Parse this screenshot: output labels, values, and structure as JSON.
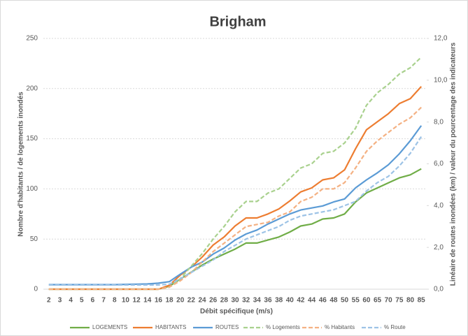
{
  "chart_data": {
    "type": "line",
    "title": "Brigham",
    "x_label": "Débit spécifique (m/s)",
    "y_label": "Nombre d'habitants / de logements inondés",
    "y2_label": "Linéaire de routes inondées (km) / valeur du pourcentage des indicateurs",
    "categories": [
      2,
      3,
      4,
      5,
      6,
      7,
      8,
      10,
      12,
      14,
      16,
      18,
      20,
      22,
      24,
      26,
      28,
      30,
      32,
      34,
      36,
      38,
      40,
      42,
      44,
      46,
      48,
      50,
      55,
      60,
      65,
      70,
      75,
      80,
      85
    ],
    "ylim": [
      0,
      250
    ],
    "yticks": [
      0,
      50,
      100,
      150,
      200,
      250
    ],
    "y2lim": [
      0,
      12
    ],
    "y2ticks": [
      {
        "value": 0,
        "label": "0,0"
      },
      {
        "value": 2,
        "label": "2,0"
      },
      {
        "value": 4,
        "label": "4,0"
      },
      {
        "value": 6,
        "label": "6,0"
      },
      {
        "value": 8,
        "label": "8,0"
      },
      {
        "value": 10,
        "label": "10,0"
      },
      {
        "value": 12,
        "label": "12,0"
      }
    ],
    "grid": true,
    "legend": "bottom",
    "series": [
      {
        "name": "LOGEMENTS",
        "color": "#70ad47",
        "dashed": false,
        "values": [
          0,
          0,
          0,
          0,
          0,
          0,
          0,
          0,
          0,
          0,
          0,
          3,
          10,
          17,
          24,
          30,
          35,
          40,
          46,
          46,
          49,
          52,
          57,
          63,
          65,
          70,
          71,
          75,
          87,
          96,
          101,
          106,
          111,
          114,
          120
        ]
      },
      {
        "name": "HABITANTS",
        "color": "#ed7d31",
        "dashed": false,
        "values": [
          0,
          0,
          0,
          0,
          0,
          0,
          0,
          0,
          0,
          0,
          0,
          4,
          14,
          22,
          32,
          44,
          52,
          63,
          71,
          71,
          75,
          80,
          88,
          97,
          101,
          109,
          111,
          119,
          140,
          159,
          167,
          175,
          185,
          190,
          202
        ]
      },
      {
        "name": "ROUTES",
        "color": "#5b9bd5",
        "dashed": false,
        "values": [
          4.5,
          4.5,
          4.5,
          4.5,
          4.5,
          4.5,
          4.5,
          4.8,
          5,
          5.2,
          6,
          7.5,
          15,
          22,
          27,
          35,
          41,
          49,
          55,
          59,
          65,
          70,
          75,
          79,
          81,
          83,
          87,
          90,
          101,
          109,
          116,
          124,
          135,
          148,
          163
        ]
      },
      {
        "name": "% Logements",
        "color": "#a9d18e",
        "dashed": true,
        "axis": "y2",
        "values": [
          0,
          0,
          0,
          0,
          0,
          0,
          0,
          0,
          0,
          0,
          0,
          0.1,
          0.5,
          1.1,
          1.7,
          2.4,
          3.0,
          3.7,
          4.2,
          4.2,
          4.6,
          4.8,
          5.3,
          5.8,
          6.0,
          6.5,
          6.6,
          7.0,
          7.7,
          8.8,
          9.4,
          9.8,
          10.3,
          10.6,
          11.1
        ]
      },
      {
        "name": "% Habitants",
        "color": "#f4b183",
        "dashed": true,
        "axis": "y2",
        "values": [
          0,
          0,
          0,
          0,
          0,
          0,
          0,
          0,
          0,
          0,
          0,
          0.1,
          0.4,
          0.8,
          1.3,
          1.8,
          2.2,
          2.6,
          3.0,
          3.1,
          3.2,
          3.5,
          3.7,
          4.2,
          4.4,
          4.8,
          4.8,
          5.1,
          5.8,
          6.6,
          7.1,
          7.5,
          7.9,
          8.2,
          8.7
        ]
      },
      {
        "name": "% Route",
        "color": "#9dc3e6",
        "dashed": true,
        "axis": "y2",
        "values": [
          0.2,
          0.2,
          0.2,
          0.2,
          0.2,
          0.2,
          0.2,
          0.2,
          0.2,
          0.2,
          0.2,
          0.24,
          0.5,
          0.8,
          1.1,
          1.4,
          1.8,
          2.1,
          2.4,
          2.6,
          2.8,
          3.0,
          3.3,
          3.5,
          3.6,
          3.7,
          3.8,
          4.0,
          4.2,
          4.7,
          5.1,
          5.4,
          5.9,
          6.5,
          7.3
        ]
      }
    ]
  }
}
